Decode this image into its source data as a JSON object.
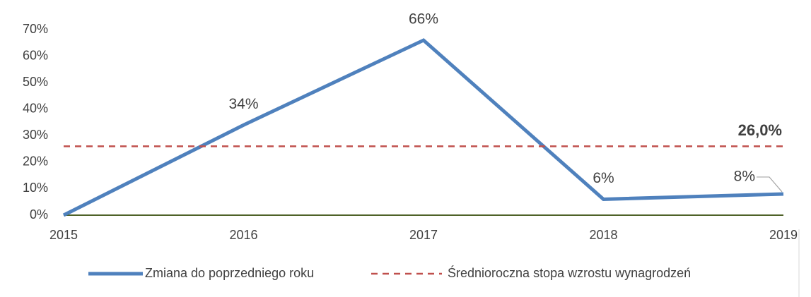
{
  "chart_data": {
    "type": "line",
    "categories": [
      "2015",
      "2016",
      "2017",
      "2018",
      "2019"
    ],
    "series": [
      {
        "name": "Zmiana do poprzedniego roku",
        "color": "#4f81bd",
        "values": [
          0,
          34,
          66,
          6,
          8
        ],
        "value_labels": [
          null,
          "34%",
          "66%",
          "6%",
          "8%"
        ]
      },
      {
        "name": "Średnioroczna stopa wzrostu wynagrodzeń",
        "color": "#c0504d",
        "dashed": true,
        "values": [
          26,
          26,
          26,
          26,
          26
        ],
        "value_labels": [
          null,
          null,
          null,
          null,
          "26,0%"
        ]
      }
    ],
    "ylim": [
      0,
      70
    ],
    "yticks": [
      {
        "value": 0,
        "label": "0%"
      },
      {
        "value": 10,
        "label": "10%"
      },
      {
        "value": 20,
        "label": "20%"
      },
      {
        "value": 30,
        "label": "30%"
      },
      {
        "value": 40,
        "label": "40%"
      },
      {
        "value": 50,
        "label": "50%"
      },
      {
        "value": 60,
        "label": "60%"
      },
      {
        "value": 70,
        "label": "70%"
      }
    ],
    "grid": false,
    "legend": "bottom"
  }
}
